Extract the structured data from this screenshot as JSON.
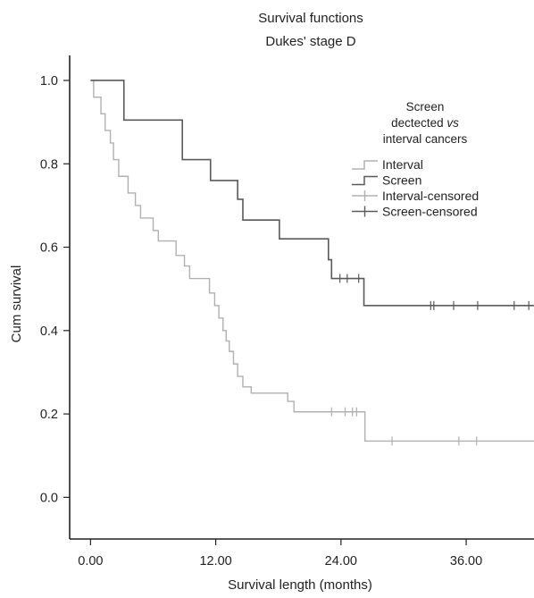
{
  "chart_data": {
    "type": "line",
    "title": "Survival functions",
    "subtitle": "Dukes' stage D",
    "xlabel": "Survival length (months)",
    "ylabel": "Cum survival",
    "xlim": [
      -2,
      42.5
    ],
    "ylim": [
      -0.1,
      1.06
    ],
    "x_ticks": [
      0,
      12,
      24,
      36
    ],
    "x_tick_labels": [
      "0.00",
      "12.00",
      "24.00",
      "36.00"
    ],
    "y_ticks": [
      0.0,
      0.2,
      0.4,
      0.6,
      0.8,
      1.0
    ],
    "y_tick_labels": [
      "0.0",
      "0.2",
      "0.4",
      "0.6",
      "0.8",
      "1.0"
    ],
    "grid": false,
    "legend": {
      "title": [
        "Screen",
        "dectected",
        "vs",
        "interval cancers"
      ],
      "placement": "top-right",
      "entries": [
        "Interval",
        "Screen",
        "Interval-censored",
        "Screen-censored"
      ]
    },
    "series": [
      {
        "name": "Interval",
        "color": "#b0b0b0",
        "step_points": [
          [
            0.0,
            1.0
          ],
          [
            0.3,
            0.96
          ],
          [
            1.0,
            0.92
          ],
          [
            1.4,
            0.88
          ],
          [
            1.9,
            0.85
          ],
          [
            2.2,
            0.81
          ],
          [
            2.7,
            0.77
          ],
          [
            3.6,
            0.73
          ],
          [
            4.3,
            0.7
          ],
          [
            4.8,
            0.67
          ],
          [
            6.0,
            0.64
          ],
          [
            6.5,
            0.615
          ],
          [
            8.2,
            0.58
          ],
          [
            9.0,
            0.555
          ],
          [
            9.5,
            0.525
          ],
          [
            11.4,
            0.49
          ],
          [
            11.9,
            0.46
          ],
          [
            12.3,
            0.43
          ],
          [
            12.7,
            0.4
          ],
          [
            13.0,
            0.375
          ],
          [
            13.3,
            0.35
          ],
          [
            13.7,
            0.32
          ],
          [
            14.1,
            0.29
          ],
          [
            14.6,
            0.265
          ],
          [
            15.4,
            0.25
          ],
          [
            18.9,
            0.23
          ],
          [
            19.5,
            0.205
          ],
          [
            26.3,
            0.135
          ],
          [
            42.5,
            0.135
          ]
        ],
        "censored_x": [
          23.1,
          24.4,
          25.1,
          25.5,
          28.9,
          35.3,
          37.0
        ]
      },
      {
        "name": "Screen",
        "color": "#5a5a5a",
        "step_points": [
          [
            0.0,
            1.0
          ],
          [
            3.2,
            0.905
          ],
          [
            8.8,
            0.81
          ],
          [
            11.5,
            0.76
          ],
          [
            14.1,
            0.715
          ],
          [
            14.6,
            0.665
          ],
          [
            18.1,
            0.62
          ],
          [
            22.8,
            0.57
          ],
          [
            23.1,
            0.525
          ],
          [
            26.2,
            0.46
          ],
          [
            42.5,
            0.46
          ]
        ],
        "censored_x": [
          23.9,
          24.6,
          25.7,
          32.6,
          32.9,
          34.8,
          37.1,
          40.6,
          42.0
        ]
      }
    ]
  }
}
